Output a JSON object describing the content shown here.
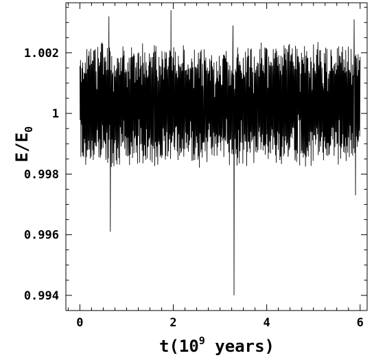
{
  "chart_data": {
    "type": "line",
    "title": "",
    "xlabel": "t(10",
    "xlabel_superscript": "9",
    "xlabel_suffix": " years)",
    "ylabel": "E/E",
    "ylabel_subscript": "0",
    "xlim": [
      -0.3,
      6.15
    ],
    "ylim": [
      0.9935,
      1.00365
    ],
    "grid": false,
    "legend": "none",
    "x_ticks": [
      0,
      2,
      4,
      6
    ],
    "x_tick_labels": [
      "0",
      "2",
      "4",
      "6"
    ],
    "y_ticks": [
      0.994,
      0.996,
      0.998,
      1.0,
      1.002
    ],
    "y_tick_labels": [
      "0.994",
      "0.996",
      "0.998",
      "1",
      "1.002"
    ],
    "series": [
      {
        "color": "#000000",
        "x_range": [
          0,
          6
        ],
        "points": 1400,
        "typical_band": [
          0.9982,
          1.0024
        ],
        "spikes": [
          {
            "x": 0.62,
            "y": 1.0032
          },
          {
            "x": 0.65,
            "y": 0.9961
          },
          {
            "x": 1.95,
            "y": 1.0034
          },
          {
            "x": 3.28,
            "y": 1.0029
          },
          {
            "x": 3.3,
            "y": 0.994
          },
          {
            "x": 5.87,
            "y": 1.0031
          },
          {
            "x": 5.9,
            "y": 0.9973
          }
        ]
      }
    ]
  }
}
